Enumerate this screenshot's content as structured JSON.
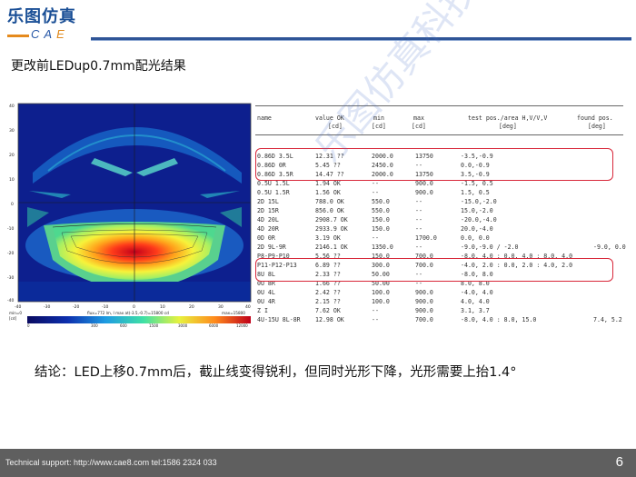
{
  "header": {
    "logo_cn": "乐图仿真",
    "logo_cae_prefix": "CA",
    "logo_cae_suffix": "E",
    "colors": {
      "brand_blue": "#1a4f96",
      "accent_orange": "#e58a1d",
      "highlight_red": "#d8283a"
    }
  },
  "title": "更改前LEDup0.7mm配光结果",
  "heatmap": {
    "x_ticks": [
      "-40",
      "-30",
      "-20",
      "-10",
      "0",
      "10",
      "20",
      "30",
      "40"
    ],
    "y_ticks": [
      "40",
      "30",
      "20",
      "10",
      "0",
      "-10",
      "-20",
      "-30",
      "-40"
    ],
    "footer_left": "min=0",
    "footer_left2": "[cd]",
    "footer_mid": "flux=772 lm, I max at(-3.5,-0.7)=15800 cd",
    "footer_right": "max=15800",
    "legend_ticks": [
      "0",
      "300",
      "600",
      "1500",
      "3000",
      "6000",
      "12000"
    ]
  },
  "table": {
    "headers": {
      "name": "name",
      "value": "value OK",
      "min": "min",
      "max": "max",
      "test": "test pos./area H,V/V,V",
      "found": "found pos."
    },
    "units": {
      "value": "[cd]",
      "min": "[cd]",
      "max": "[cd]",
      "test": "[deg]",
      "found": "[deg]"
    },
    "rows": [
      {
        "name": "0.86D 3.5L",
        "value": "12.31 ??",
        "min": "2000.0",
        "max": "13750",
        "test": "-3.5,-0.9",
        "found": ""
      },
      {
        "name": "0.86D 0R",
        "value": "5.45 ??",
        "min": "2450.0",
        "max": "--",
        "test": "0.0,-0.9",
        "found": ""
      },
      {
        "name": "0.86D 3.5R",
        "value": "14.47 ??",
        "min": "2000.0",
        "max": "13750",
        "test": "3.5,-0.9",
        "found": ""
      },
      {
        "name": "0.5U 1.5L",
        "value": "1.94 OK",
        "min": "--",
        "max": "900.0",
        "test": "-1.5, 0.5",
        "found": ""
      },
      {
        "name": "0.5U 1.5R",
        "value": "1.56 OK",
        "min": "--",
        "max": "900.0",
        "test": "1.5, 0.5",
        "found": ""
      },
      {
        "name": "2D 15L",
        "value": "788.0 OK",
        "min": "550.0",
        "max": "--",
        "test": "-15.0,-2.0",
        "found": ""
      },
      {
        "name": "2D 15R",
        "value": "856.0 OK",
        "min": "550.0",
        "max": "--",
        "test": "15.0,-2.0",
        "found": ""
      },
      {
        "name": "4D 20L",
        "value": "2908.7 OK",
        "min": "150.0",
        "max": "--",
        "test": "-20.0,-4.0",
        "found": ""
      },
      {
        "name": "4D 20R",
        "value": "2933.9 OK",
        "min": "150.0",
        "max": "--",
        "test": "20.0,-4.0",
        "found": ""
      },
      {
        "name": "0D 0R",
        "value": "3.19 OK",
        "min": "--",
        "max": "1700.0",
        "test": "0.0, 0.0",
        "found": ""
      },
      {
        "name": "2D 9L-9R",
        "value": "2146.1 OK",
        "min": "1350.0",
        "max": "--",
        "test": "-9.0,-9.0 / -2.0",
        "found": "-9.0, 0.0"
      },
      {
        "name": "P8-P9-P10",
        "value": "5.56 ??",
        "min": "150.0",
        "max": "700.0",
        "test": "-8.0, 4.0 : 0.0, 4.0 : 8.0, 4.0",
        "found": ""
      },
      {
        "name": "P11-P12-P13",
        "value": "6.89 ??",
        "min": "300.0",
        "max": "700.0",
        "test": "-4.0, 2.0 : 0.0, 2.0 : 4.0, 2.0",
        "found": ""
      },
      {
        "name": "8U 8L",
        "value": "2.33 ??",
        "min": "50.00",
        "max": "--",
        "test": "-8.0, 8.0",
        "found": ""
      },
      {
        "name": "0U 8R",
        "value": "1.66 ??",
        "min": "50.00",
        "max": "--",
        "test": "8.0, 8.0",
        "found": ""
      },
      {
        "name": "0U 4L",
        "value": "2.42 ??",
        "min": "100.0",
        "max": "900.0",
        "test": "-4.0, 4.0",
        "found": ""
      },
      {
        "name": "0U 4R",
        "value": "2.15 ??",
        "min": "100.0",
        "max": "900.0",
        "test": "4.0, 4.0",
        "found": ""
      },
      {
        "name": "Z I",
        "value": "7.62 OK",
        "min": "--",
        "max": "900.0",
        "test": "3.1, 3.7",
        "found": ""
      },
      {
        "name": "4U-15U 8L-8R",
        "value": "12.98 OK",
        "min": "--",
        "max": "700.0",
        "test": "-8.0, 4.0 : 8.0, 15.0",
        "found": "7.4, 5.2"
      }
    ]
  },
  "watermark": "乐图仿真科技",
  "conclusion": "结论：LED上移0.7mm后，截止线变得锐利，但同时光形下降，光形需要上抬1.4°",
  "footer": {
    "support": "Technical support: http://www.cae8.com  tel:1586 2324 033",
    "page": "6"
  }
}
